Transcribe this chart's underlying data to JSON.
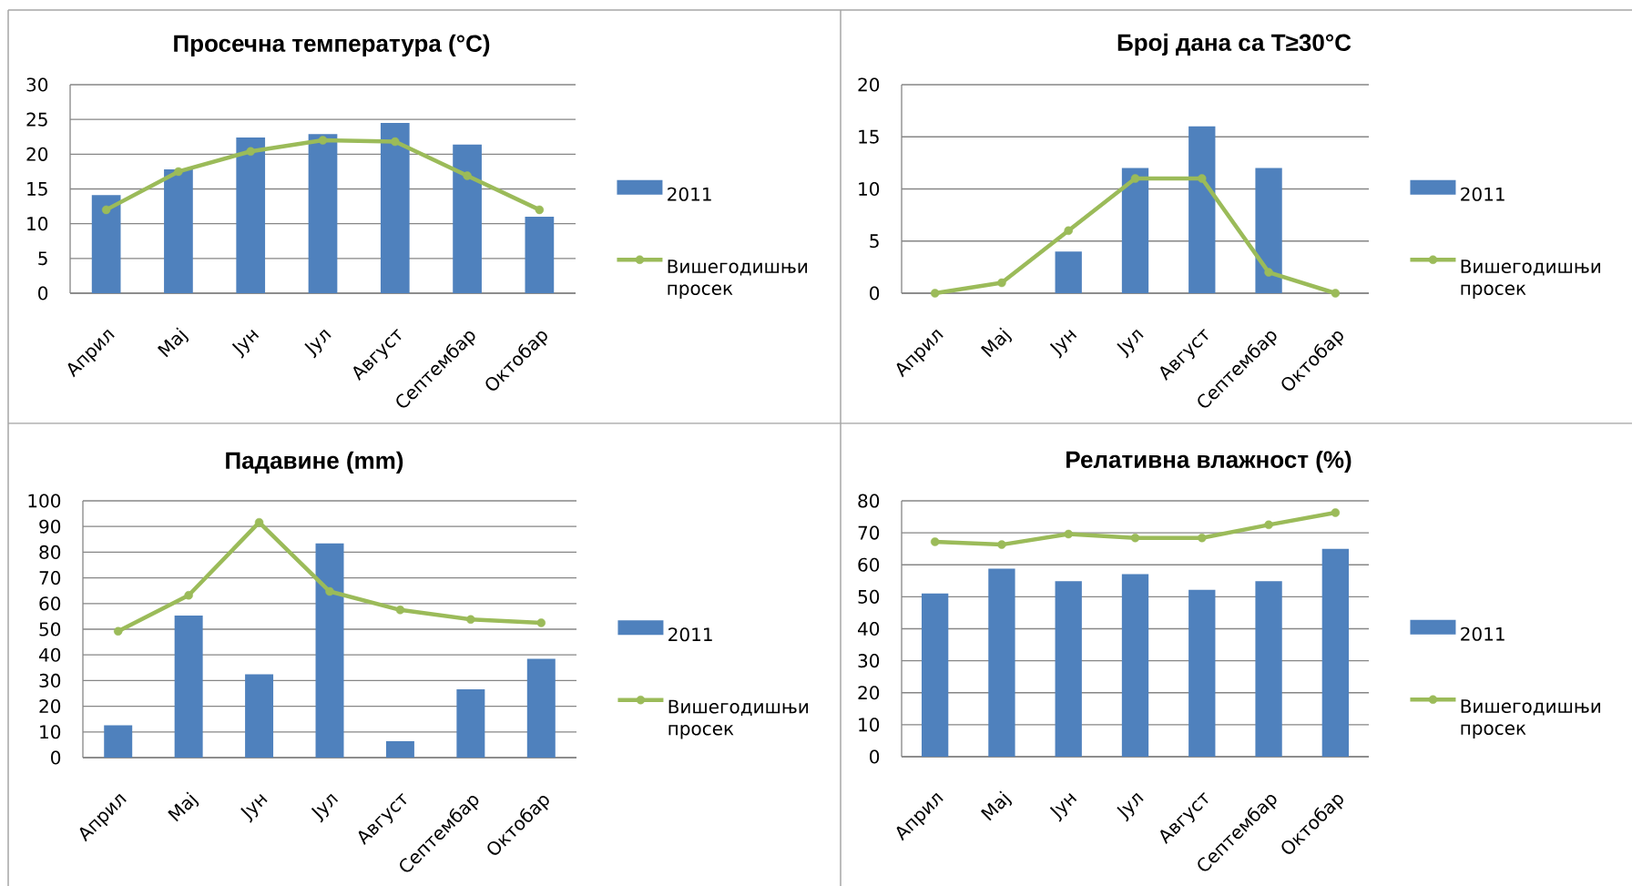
{
  "chart_data": [
    {
      "type": "bar",
      "title": "Просечна температура (°C)",
      "categories": [
        "Април",
        "Мај",
        "Јун",
        "Јул",
        "Август",
        "Септембар",
        "Октобар"
      ],
      "series": [
        {
          "name": "2011",
          "color": "#4f81bd",
          "values": [
            14.1,
            17.8,
            22.4,
            22.9,
            24.5,
            21.4,
            11.0
          ]
        },
        {
          "name": "Вишегодишњи просек",
          "type": "line",
          "color": "#9bbb59",
          "marker": "circle",
          "values": [
            12.0,
            17.5,
            20.4,
            22.0,
            21.8,
            16.9,
            12.0
          ]
        }
      ],
      "ylim": [
        0,
        30
      ],
      "yticks": [
        0,
        5,
        10,
        15,
        20,
        25,
        30
      ],
      "grid": "y",
      "legend": "right"
    },
    {
      "type": "bar",
      "title": "Број дана са T≥30°C",
      "categories": [
        "Април",
        "Мај",
        "Јун",
        "Јул",
        "Август",
        "Септембар",
        "Октобар"
      ],
      "series": [
        {
          "name": "2011",
          "color": "#4f81bd",
          "values": [
            0,
            0,
            4,
            12,
            16,
            12,
            0
          ]
        },
        {
          "name": "Вишегодишњи просек",
          "type": "line",
          "color": "#9bbb59",
          "marker": "circle",
          "values": [
            0,
            1,
            6,
            11,
            11,
            2,
            0
          ]
        }
      ],
      "ylim": [
        0,
        20
      ],
      "yticks": [
        0,
        5,
        10,
        15,
        20
      ],
      "grid": "y",
      "legend": "right"
    },
    {
      "type": "bar",
      "title": "Падавине (mm)",
      "categories": [
        "Април",
        "Мај",
        "Јун",
        "Јул",
        "Август",
        "Септембар",
        "Октобар"
      ],
      "series": [
        {
          "name": "2011",
          "color": "#4f81bd",
          "values": [
            12.6,
            55.3,
            32.4,
            83.4,
            6.4,
            26.6,
            38.5
          ]
        },
        {
          "name": "Вишегодишњи просек",
          "type": "line",
          "color": "#9bbb59",
          "marker": "circle",
          "values": [
            49.2,
            63.2,
            91.6,
            64.7,
            57.5,
            53.8,
            52.5
          ]
        }
      ],
      "ylim": [
        0,
        100
      ],
      "yticks": [
        0,
        10,
        20,
        30,
        40,
        50,
        60,
        70,
        80,
        90,
        100
      ],
      "grid": "y",
      "legend": "right"
    },
    {
      "type": "bar",
      "title": "Релативна влажност (%)",
      "categories": [
        "Април",
        "Мај",
        "Јун",
        "Јул",
        "Август",
        "Септембар",
        "Октобар"
      ],
      "series": [
        {
          "name": "2011",
          "color": "#4f81bd",
          "values": [
            51.0,
            58.8,
            54.9,
            57.1,
            52.2,
            54.9,
            65.0
          ]
        },
        {
          "name": "Вишегодишњи просек",
          "type": "line",
          "color": "#9bbb59",
          "marker": "circle",
          "values": [
            67.2,
            66.3,
            69.6,
            68.4,
            68.4,
            72.5,
            76.3
          ]
        }
      ],
      "ylim": [
        0,
        80
      ],
      "yticks": [
        0,
        10,
        20,
        30,
        40,
        50,
        60,
        70,
        80
      ],
      "grid": "y",
      "legend": "right"
    }
  ]
}
